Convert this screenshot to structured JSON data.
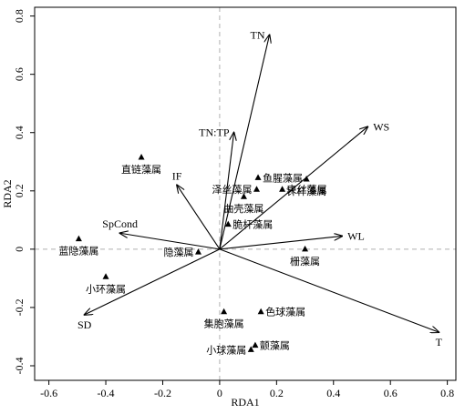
{
  "chart_data": {
    "type": "scatter",
    "title": "",
    "xlabel": "RDA1",
    "ylabel": "RDA2",
    "xlim": [
      -0.65,
      0.83
    ],
    "ylim": [
      -0.45,
      0.83
    ],
    "xticks": [
      -0.6,
      -0.4,
      -0.2,
      0.0,
      0.2,
      0.4,
      0.6,
      0.8
    ],
    "yticks": [
      -0.4,
      -0.2,
      0.0,
      0.2,
      0.4,
      0.6,
      0.8
    ],
    "tick_labels_x": [
      "-0.6",
      "-0.4",
      "-0.2",
      "0",
      "0.2",
      "0.4",
      "0.6",
      "0.8"
    ],
    "tick_labels_y": [
      "-0.4",
      "-0.2",
      "0",
      "0.2",
      "0.4",
      "0.6",
      "0.8"
    ],
    "grid": false,
    "zero_lines": true,
    "arrows": [
      {
        "name": "TN",
        "x": 0.175,
        "y": 0.735,
        "label_pos": "left"
      },
      {
        "name": "WS",
        "x": 0.52,
        "y": 0.42,
        "label_pos": "right"
      },
      {
        "name": "TN:TP",
        "x": 0.05,
        "y": 0.4,
        "label_pos": "left"
      },
      {
        "name": "IF",
        "x": -0.15,
        "y": 0.22,
        "label_pos": "above"
      },
      {
        "name": "SpCond",
        "x": -0.35,
        "y": 0.055,
        "label_pos": "above"
      },
      {
        "name": "WL",
        "x": 0.43,
        "y": 0.045,
        "label_pos": "right"
      },
      {
        "name": "SD",
        "x": -0.475,
        "y": -0.225,
        "label_pos": "below"
      },
      {
        "name": "T",
        "x": 0.77,
        "y": -0.285,
        "label_pos": "below"
      }
    ],
    "points": [
      {
        "name": "直链藻属",
        "x": -0.275,
        "y": 0.315,
        "label_pos": "below"
      },
      {
        "name": "鱼腥藻属",
        "x": 0.135,
        "y": 0.245,
        "label_pos": "right"
      },
      {
        "name": "泽丝藻属",
        "x": 0.13,
        "y": 0.205,
        "label_pos": "left"
      },
      {
        "name": "束丝藻属",
        "x": 0.22,
        "y": 0.205,
        "label_pos": "right"
      },
      {
        "name": "针杆藻属",
        "x": 0.305,
        "y": 0.24,
        "label_pos": "below"
      },
      {
        "name": "曲壳藻属",
        "x": 0.085,
        "y": 0.18,
        "label_pos": "below"
      },
      {
        "name": "脆杆藻属",
        "x": 0.03,
        "y": 0.085,
        "label_pos": "right"
      },
      {
        "name": "蓝隐藻属",
        "x": -0.495,
        "y": 0.035,
        "label_pos": "below"
      },
      {
        "name": "隐藻属",
        "x": -0.075,
        "y": -0.01,
        "label_pos": "left"
      },
      {
        "name": "栅藻属",
        "x": 0.3,
        "y": 0.0,
        "label_pos": "below"
      },
      {
        "name": "小环藻属",
        "x": -0.4,
        "y": -0.095,
        "label_pos": "below"
      },
      {
        "name": "集胞藻属",
        "x": 0.015,
        "y": -0.215,
        "label_pos": "below"
      },
      {
        "name": "色球藻属",
        "x": 0.145,
        "y": -0.215,
        "label_pos": "right"
      },
      {
        "name": "小球藻属",
        "x": 0.11,
        "y": -0.345,
        "label_pos": "left"
      },
      {
        "name": "颤藻属",
        "x": 0.125,
        "y": -0.33,
        "label_pos": "right"
      }
    ]
  }
}
